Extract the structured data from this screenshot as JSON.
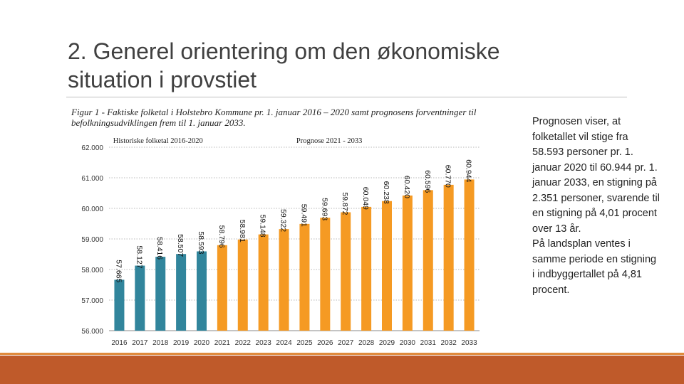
{
  "slide": {
    "title": "2. Generel orientering om den økonomiske situation i provstiet",
    "body_text_1": "Prognosen viser, at folketallet vil stige fra 58.593 personer pr. 1. januar 2020 til 60.944 pr. 1. januar 2033, en stigning på 2.351 personer, svarende til en stigning på 4,01 procent over 13 år.",
    "body_text_2": "På landsplan ventes i samme periode en stigning i indbyggertallet på 4,81 procent."
  },
  "figure": {
    "caption": "Figur 1 - Faktiske folketal i Holstebro Kommune pr. 1. januar 2016 – 2020 samt prognosens forventninger til befolkningsudviklingen frem til 1. januar 2033."
  },
  "colors": {
    "historic": "#31859c",
    "forecast": "#f59a23",
    "accent_bar": "#bf5a2a"
  },
  "chart_data": {
    "type": "bar",
    "title": "",
    "xlabel": "",
    "ylabel": "",
    "ylim": [
      56000,
      62000
    ],
    "yticks": [
      56000,
      57000,
      58000,
      59000,
      60000,
      61000,
      62000
    ],
    "ytick_labels": [
      "56.000",
      "57.000",
      "58.000",
      "59.000",
      "60.000",
      "61.000",
      "62.000"
    ],
    "grid": true,
    "series": [
      {
        "name": "Historiske folketal 2016-2020",
        "categories": [
          "2016",
          "2017",
          "2018",
          "2019",
          "2020"
        ],
        "values": [
          57665,
          58127,
          58416,
          58507,
          58593
        ],
        "labels": [
          "57.665",
          "58.127",
          "58.416",
          "58.507",
          "58.593"
        ]
      },
      {
        "name": "Prognose 2021 - 2033",
        "categories": [
          "2021",
          "2022",
          "2023",
          "2024",
          "2025",
          "2026",
          "2027",
          "2028",
          "2029",
          "2030",
          "2031",
          "2032",
          "2033"
        ],
        "values": [
          58796,
          58981,
          59148,
          59322,
          59491,
          59693,
          59872,
          60049,
          60238,
          60420,
          60596,
          60770,
          60944
        ],
        "labels": [
          "58.796",
          "58.981",
          "59.148",
          "59.322",
          "59.491",
          "59.693",
          "59.872",
          "60.049",
          "60.238",
          "60.420",
          "60.596",
          "60.770",
          "60.944"
        ]
      }
    ]
  }
}
